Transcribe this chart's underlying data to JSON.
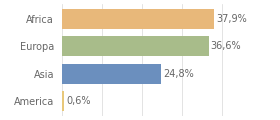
{
  "categories": [
    "America",
    "Asia",
    "Europa",
    "Africa"
  ],
  "values": [
    0.6,
    24.8,
    36.6,
    37.9
  ],
  "labels": [
    "0,6%",
    "24,8%",
    "36,6%",
    "37,9%"
  ],
  "bar_colors": [
    "#e8c87a",
    "#6b8fbe",
    "#a8bc8a",
    "#e8b87a"
  ],
  "background_color": "#ffffff",
  "xlim": [
    0,
    46
  ],
  "label_fontsize": 7.0,
  "tick_fontsize": 7.0,
  "grid_color": "#d8d8d8",
  "label_color": "#666666",
  "tick_color": "#666666"
}
